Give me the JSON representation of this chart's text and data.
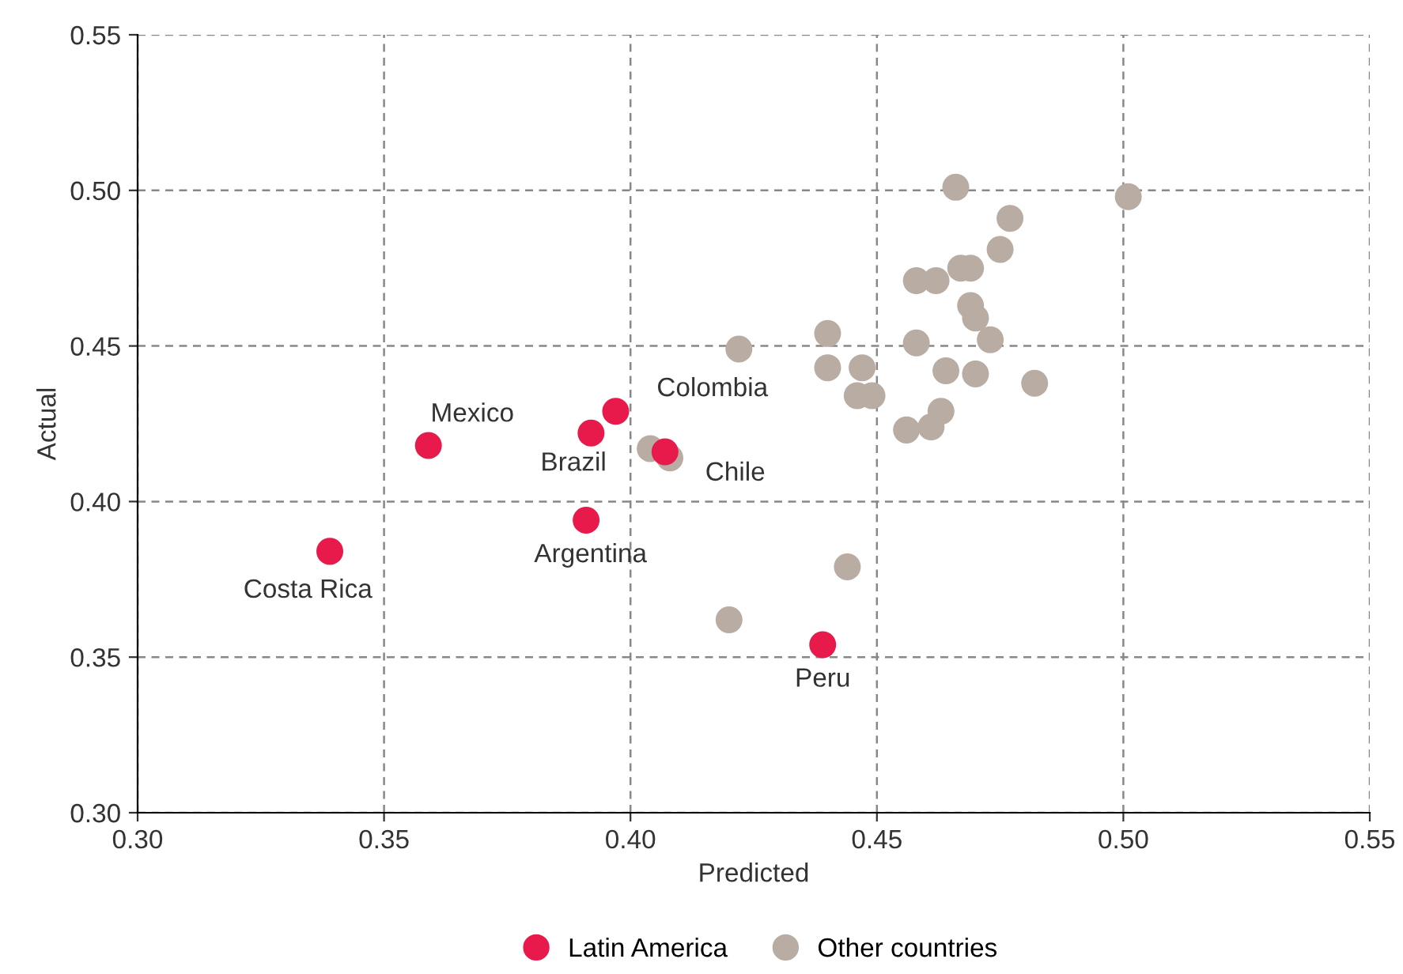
{
  "chart_data": {
    "type": "scatter",
    "xlabel": "Predicted",
    "ylabel": "Actual",
    "xlim": [
      0.3,
      0.55
    ],
    "xticks": [
      {
        "value": 0.3,
        "label": "0.30"
      },
      {
        "value": 0.35,
        "label": "0.35"
      },
      {
        "value": 0.4,
        "label": "0.40"
      },
      {
        "value": 0.45,
        "label": "0.45"
      },
      {
        "value": 0.5,
        "label": "0.50"
      },
      {
        "value": 0.55,
        "label": "0.55"
      }
    ],
    "ylim": [
      0.3,
      0.55
    ],
    "yticks": [
      {
        "value": 0.3,
        "label": "0.30"
      },
      {
        "value": 0.35,
        "label": "0.35"
      },
      {
        "value": 0.4,
        "label": "0.40"
      },
      {
        "value": 0.45,
        "label": "0.45"
      },
      {
        "value": 0.5,
        "label": "0.50"
      },
      {
        "value": 0.55,
        "label": "0.55"
      }
    ],
    "grid": true,
    "legend": "bottom",
    "marker": "circle",
    "series": [
      {
        "name": "Latin America",
        "color": "#e8194b",
        "x": [
          0.339,
          0.359,
          0.391,
          0.392,
          0.397,
          0.407,
          0.439
        ],
        "values": [
          0.384,
          0.418,
          0.394,
          0.422,
          0.429,
          0.416,
          0.354
        ]
      },
      {
        "name": "Other countries",
        "color": "#b8aca3",
        "x": [
          0.466,
          0.477,
          0.501,
          0.475,
          0.467,
          0.469,
          0.458,
          0.462,
          0.469,
          0.47,
          0.473,
          0.458,
          0.422,
          0.44,
          0.44,
          0.447,
          0.464,
          0.47,
          0.482,
          0.446,
          0.449,
          0.463,
          0.461,
          0.456,
          0.404,
          0.408,
          0.444,
          0.42
        ],
        "values": [
          0.501,
          0.491,
          0.498,
          0.481,
          0.475,
          0.475,
          0.471,
          0.471,
          0.463,
          0.459,
          0.452,
          0.451,
          0.449,
          0.454,
          0.443,
          0.443,
          0.442,
          0.441,
          0.438,
          0.434,
          0.434,
          0.429,
          0.424,
          0.423,
          0.417,
          0.414,
          0.379,
          0.362
        ]
      }
    ],
    "annotations": [
      {
        "text": "Costa Rica",
        "x": 0.339,
        "y": 0.384
      },
      {
        "text": "Mexico",
        "x": 0.359,
        "y": 0.418
      },
      {
        "text": "Argentina",
        "x": 0.391,
        "y": 0.394
      },
      {
        "text": "Brazil",
        "x": 0.392,
        "y": 0.422
      },
      {
        "text": "Colombia",
        "x": 0.397,
        "y": 0.429
      },
      {
        "text": "Chile",
        "x": 0.407,
        "y": 0.416
      },
      {
        "text": "Peru",
        "x": 0.439,
        "y": 0.354
      }
    ]
  }
}
